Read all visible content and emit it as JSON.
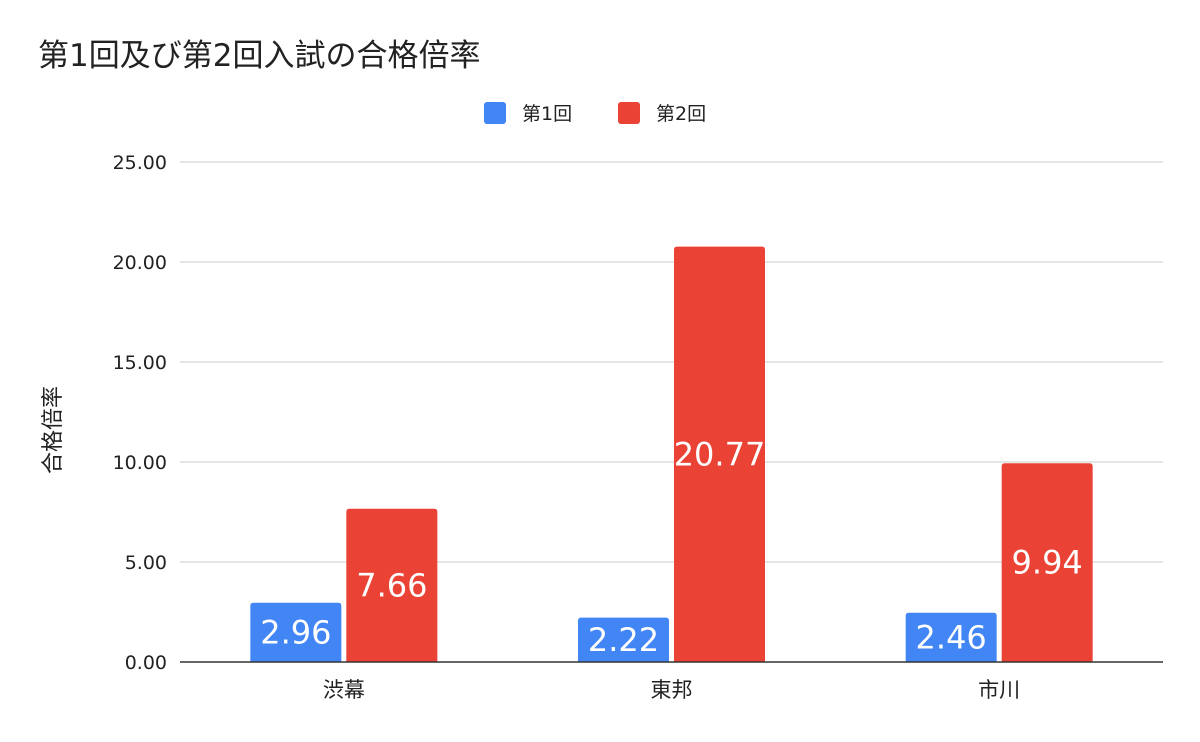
{
  "chart_data": {
    "type": "bar",
    "title": "第1回及び第2回入試の合格倍率",
    "ylabel": "合格倍率",
    "xlabel": "",
    "categories": [
      "渋幕",
      "東邦",
      "市川"
    ],
    "series": [
      {
        "name": "第1回",
        "color": "#4285f4",
        "values": [
          2.96,
          2.22,
          2.46
        ],
        "labels": [
          "2.96",
          "2.22",
          "2.46"
        ]
      },
      {
        "name": "第2回",
        "color": "#ea4335",
        "values": [
          7.66,
          20.77,
          9.94
        ],
        "labels": [
          "7.66",
          "20.77",
          "9.94"
        ]
      }
    ],
    "ylim": [
      0,
      25
    ],
    "yticks": [
      "0.00",
      "5.00",
      "10.00",
      "15.00",
      "20.00",
      "25.00"
    ],
    "grid": true,
    "legend": "top-center"
  }
}
